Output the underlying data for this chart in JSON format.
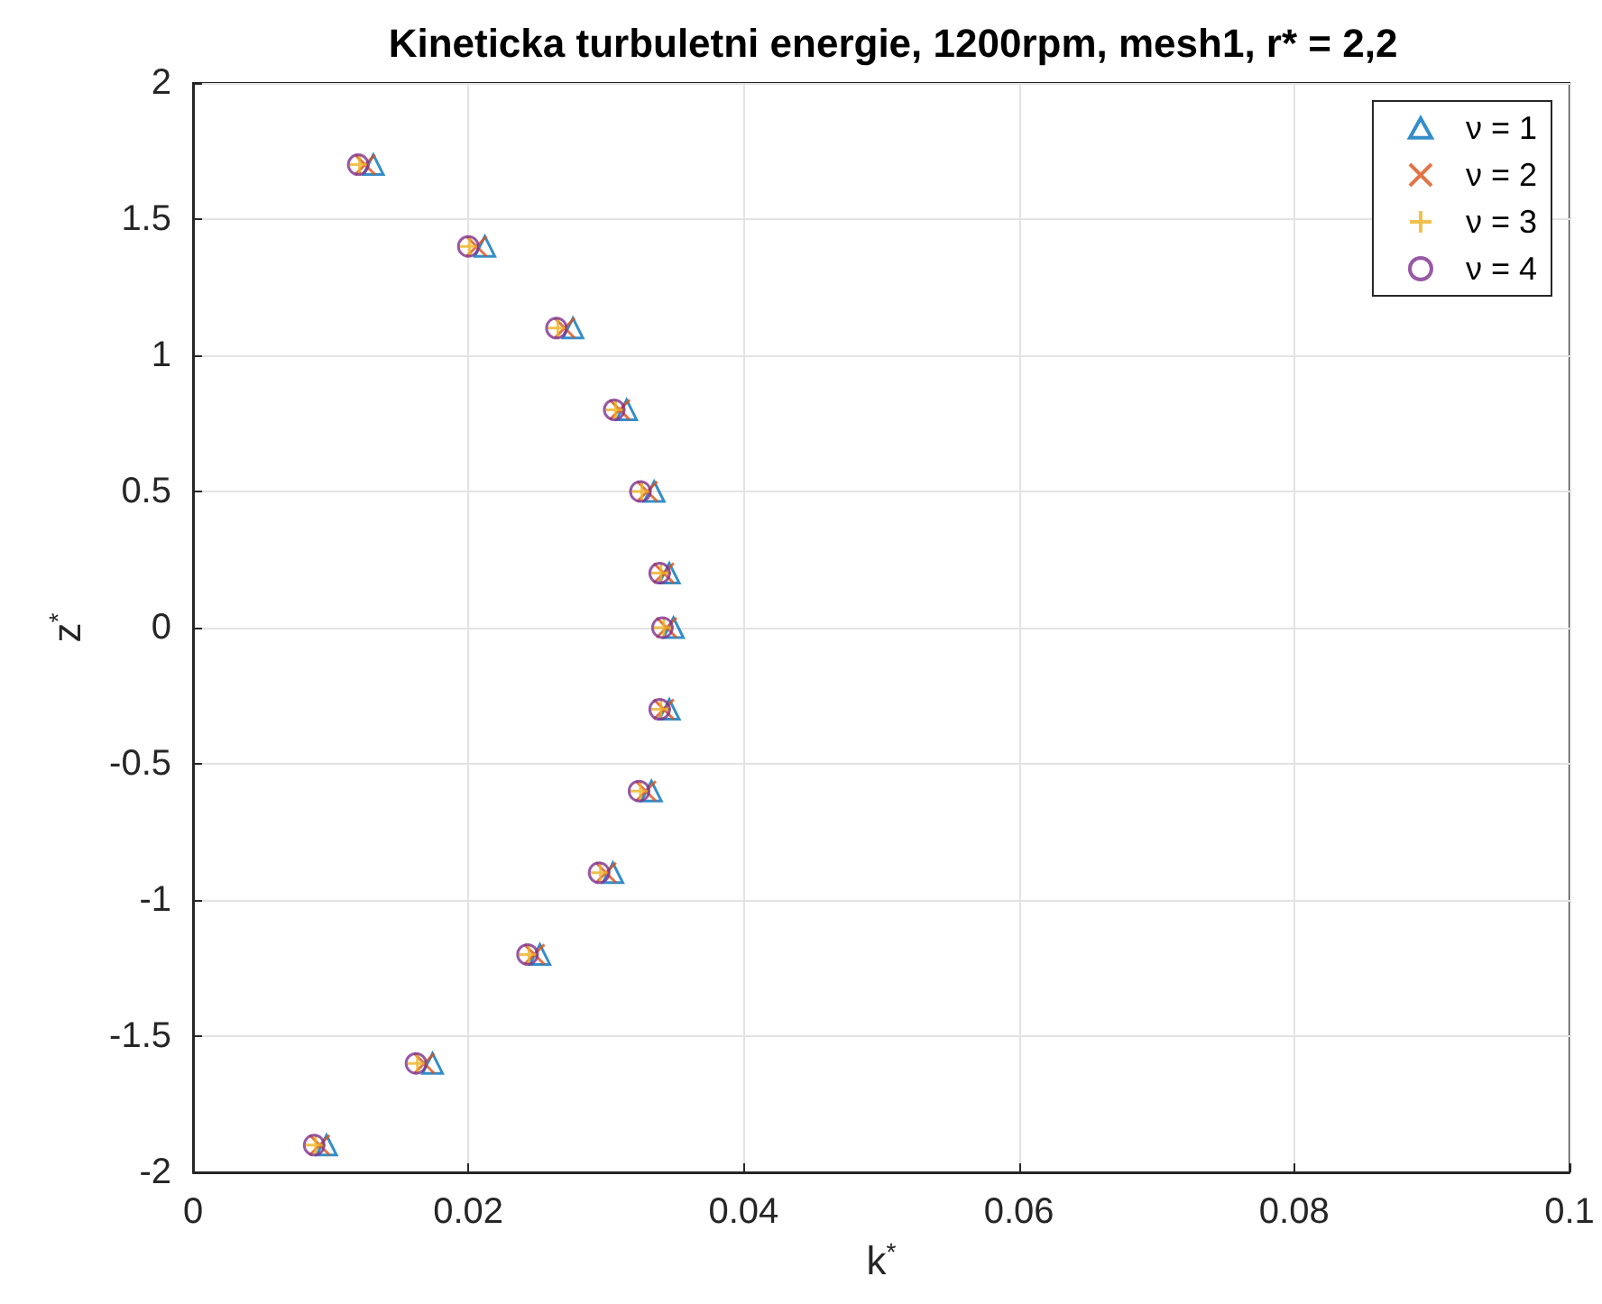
{
  "chart_data": {
    "type": "scatter",
    "title": "Kineticka turbuletni energie, 1200rpm, mesh1, r* = 2,2",
    "xlabel": "k$^{*}$",
    "ylabel": "z$^{*}$",
    "xlim": [
      0,
      0.1
    ],
    "xticks": [
      0,
      0.02,
      0.04,
      0.06,
      0.08,
      0.1
    ],
    "ylim": [
      -2,
      2
    ],
    "yticks": [
      -2,
      -1.5,
      -1,
      -0.5,
      0,
      0.5,
      1,
      1.5,
      2
    ],
    "grid": true,
    "legend": "top right",
    "series": [
      {
        "name": "ν = 1",
        "color": "#0072bd",
        "marker": "triangle",
        "x": [
          0.0131,
          0.0212,
          0.0276,
          0.0315,
          0.0335,
          0.0346,
          0.0349,
          0.0346,
          0.0333,
          0.0305,
          0.0252,
          0.0174,
          0.0097
        ],
        "values": [
          1.7,
          1.4,
          1.1,
          0.8,
          0.5,
          0.2,
          0,
          -0.3,
          -0.6,
          -0.9,
          -1.2,
          -1.6,
          -1.9
        ]
      },
      {
        "name": "ν = 2",
        "color": "#d95319",
        "marker": "cross",
        "x": [
          0.0125,
          0.0206,
          0.027,
          0.031,
          0.033,
          0.0342,
          0.0344,
          0.0342,
          0.0329,
          0.03,
          0.0248,
          0.0168,
          0.0092
        ],
        "values": [
          1.7,
          1.4,
          1.1,
          0.8,
          0.5,
          0.2,
          0,
          -0.3,
          -0.6,
          -0.9,
          -1.2,
          -1.6,
          -1.9
        ]
      },
      {
        "name": "ν = 3",
        "color": "#edb120",
        "marker": "plus",
        "x": [
          0.0121,
          0.0201,
          0.0265,
          0.0307,
          0.0326,
          0.034,
          0.0342,
          0.034,
          0.0325,
          0.0296,
          0.0244,
          0.0163,
          0.0089
        ],
        "values": [
          1.7,
          1.4,
          1.1,
          0.8,
          0.5,
          0.2,
          0,
          -0.3,
          -0.6,
          -0.9,
          -1.2,
          -1.6,
          -1.9
        ]
      },
      {
        "name": "ν = 4",
        "color": "#7e2f8e",
        "marker": "circle",
        "x": [
          0.012,
          0.02,
          0.0264,
          0.0306,
          0.0325,
          0.0339,
          0.0341,
          0.0339,
          0.0324,
          0.0295,
          0.0243,
          0.0162,
          0.0088
        ],
        "values": [
          1.7,
          1.4,
          1.1,
          0.8,
          0.5,
          0.2,
          0,
          -0.3,
          -0.6,
          -0.9,
          -1.2,
          -1.6,
          -1.9
        ]
      }
    ]
  }
}
